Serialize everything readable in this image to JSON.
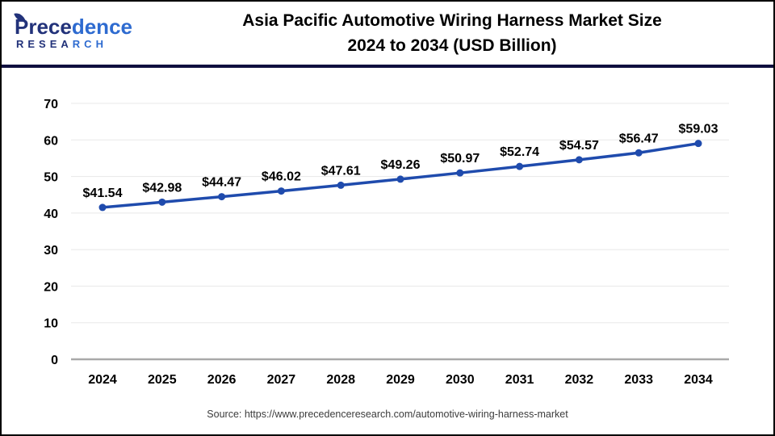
{
  "header": {
    "logo": {
      "name_part1": "Prece",
      "name_part2": "dence",
      "sub_part1": "RESEA",
      "sub_part2": "RCH",
      "navy": "#22327a",
      "blue": "#2e6bd0"
    },
    "title_line1": "Asia Pacific Automotive Wiring Harness Market Size",
    "title_line2": "2024 to 2034 (USD Billion)"
  },
  "chart_data": {
    "type": "line",
    "title": "Asia Pacific Automotive Wiring Harness Market Size 2024 to 2034 (USD Billion)",
    "categories": [
      "2024",
      "2025",
      "2026",
      "2027",
      "2028",
      "2029",
      "2030",
      "2031",
      "2032",
      "2033",
      "2034"
    ],
    "values": [
      41.54,
      42.98,
      44.47,
      46.02,
      47.61,
      49.26,
      50.97,
      52.74,
      54.57,
      56.47,
      59.03
    ],
    "data_labels": [
      "$41.54",
      "$42.98",
      "$44.47",
      "$46.02",
      "$47.61",
      "$49.26",
      "$50.97",
      "$52.74",
      "$54.57",
      "$56.47",
      "$59.03"
    ],
    "xlabel": "",
    "ylabel": "",
    "ylim": [
      0,
      70
    ],
    "yticks": [
      0,
      10,
      20,
      30,
      40,
      50,
      60,
      70
    ],
    "grid": true,
    "legend": false,
    "line_color": "#1f4bad"
  },
  "colors": {
    "gridline": "#e8e8e8",
    "axis_line": "#a9a9a9",
    "tick_text": "#000000",
    "label_text": "#000000",
    "header_rule": "#0f0f3e",
    "frame_border": "#000000"
  },
  "footer": {
    "source": "Source: https://www.precedenceresearch.com/automotive-wiring-harness-market"
  }
}
